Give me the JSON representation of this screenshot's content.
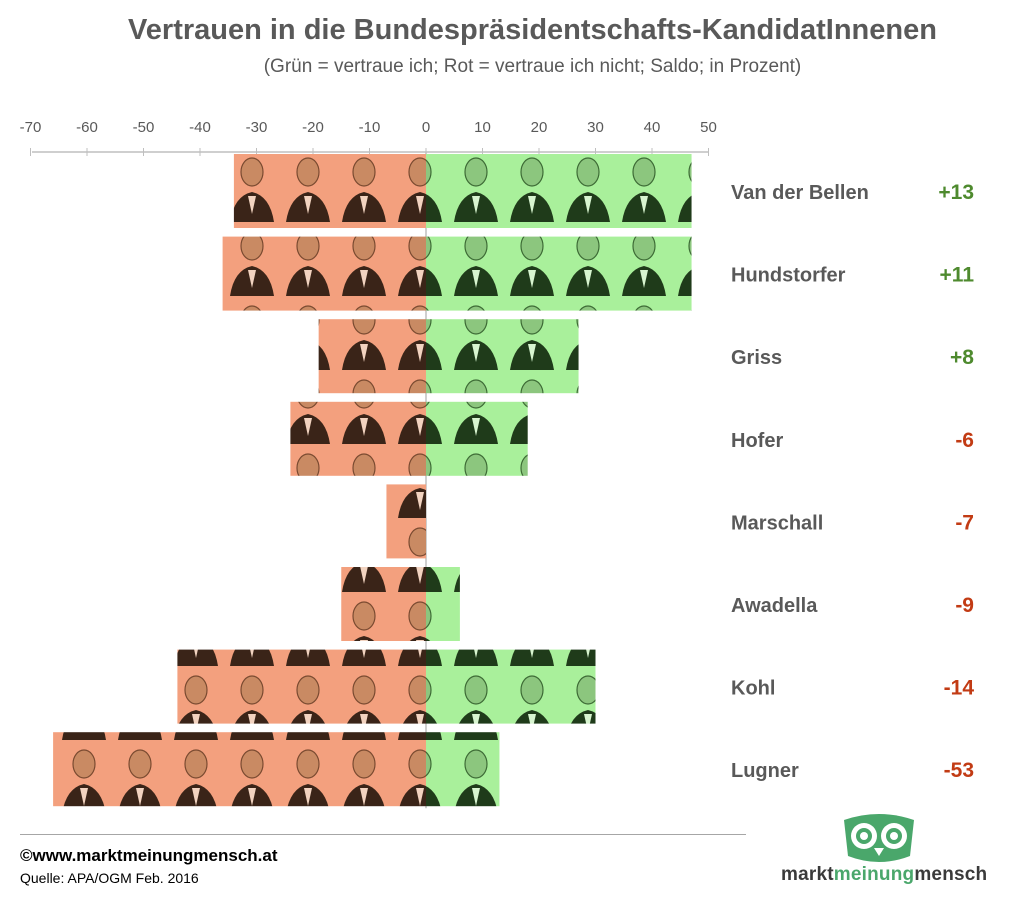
{
  "title": "Vertrauen in die Bundespräsidentschafts-KandidatInnenen",
  "subtitle": "(Grün = vertraue ich; Rot = vertraue ich nicht; Saldo; in Prozent)",
  "footer": {
    "website": "©www.marktmeinungmensch.at",
    "source": "Quelle: APA/OGM Feb. 2016"
  },
  "brand": {
    "part1": "markt",
    "part2": "meinung",
    "part3": "mensch"
  },
  "colors": {
    "trust": "#a9f09b",
    "distrust": "#f3a07e",
    "positive_saldo": "#4e8a2e",
    "negative_saldo": "#c23b14",
    "label": "#595959",
    "axis": "#bfbfbf",
    "brand_green": "#4aa76b"
  },
  "chart_data": {
    "type": "bar",
    "orientation": "horizontal-diverging",
    "title": "Vertrauen in die Bundespräsidentschafts-KandidatInnenen",
    "subtitle": "(Grün = vertraue ich; Rot = vertraue ich nicht; Saldo; in Prozent)",
    "xlim": [
      -70,
      50
    ],
    "xticks": [
      -70,
      -60,
      -50,
      -40,
      -30,
      -20,
      -10,
      0,
      10,
      20,
      30,
      40,
      50
    ],
    "axis_position": "top",
    "categories": [
      "Van der Bellen",
      "Hundstorfer",
      "Griss",
      "Hofer",
      "Marschall",
      "Awadella",
      "Kohl",
      "Lugner"
    ],
    "series": [
      {
        "name": "vertraue ich",
        "values": [
          47,
          47,
          27,
          18,
          0,
          6,
          30,
          13
        ]
      },
      {
        "name": "vertraue ich nicht",
        "values": [
          -34,
          -36,
          -19,
          -24,
          -7,
          -15,
          -44,
          -66
        ]
      }
    ],
    "saldo": [
      "+13",
      "+11",
      "+8",
      "-6",
      "-7",
      "-9",
      "-14",
      "-53"
    ]
  }
}
